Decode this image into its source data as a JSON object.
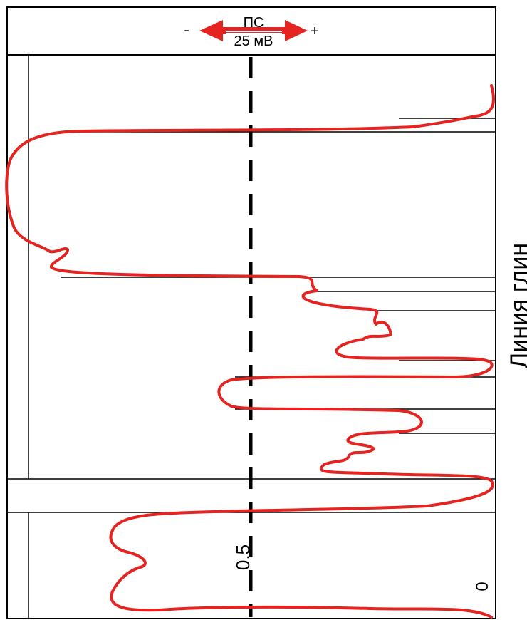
{
  "header": {
    "curve_name": "ПС",
    "scale": "25 мВ",
    "minus_sign": "-",
    "plus_sign": "+"
  },
  "annotations": {
    "line_label": "Линия глин",
    "mid_value": "0.5",
    "zero_value": "0"
  },
  "colors": {
    "curve": "#e52421",
    "frame": "#000000"
  },
  "chart_data": {
    "type": "line",
    "ticks": [
      "0",
      "0.5"
    ],
    "layers": [
      {
        "top": 0.0,
        "bottom": 0.15,
        "alpha": 1.0
      },
      {
        "top": 0.15,
        "bottom": 0.35,
        "alpha": 0.05
      },
      {
        "top": 0.35,
        "bottom": 0.47,
        "alpha": 0.55
      },
      {
        "top": 0.47,
        "bottom": 0.52,
        "alpha": 0.95
      },
      {
        "top": 0.52,
        "bottom": 0.63,
        "alpha": 0.6
      },
      {
        "top": 0.63,
        "bottom": 0.68,
        "alpha": 1.0
      },
      {
        "top": 0.68,
        "bottom": 1.0,
        "alpha": 0.2
      }
    ]
  }
}
